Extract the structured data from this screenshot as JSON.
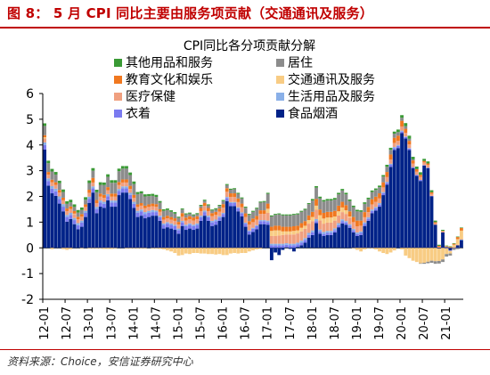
{
  "figure": {
    "title": "图 8： 5 月 CPI 同比主要由服务项贡献（交通通讯及服务）",
    "source": "资料来源：Choice，安信证券研究中心"
  },
  "chart_data": {
    "type": "bar",
    "stacked": true,
    "title": "CPI同比各分项贡献分解",
    "xlabel": "",
    "ylabel": "",
    "ylim": [
      -2,
      6
    ],
    "yticks": [
      -2,
      -1,
      0,
      1,
      2,
      3,
      4,
      5,
      6
    ],
    "xtick_labels": [
      "12-01",
      "12-07",
      "13-01",
      "13-07",
      "14-01",
      "14-07",
      "15-01",
      "15-07",
      "16-01",
      "16-07",
      "17-01",
      "17-07",
      "18-01",
      "18-07",
      "19-01",
      "19-07",
      "20-01",
      "20-07",
      "21-01"
    ],
    "legend_position": "top",
    "x": [
      "12-01",
      "12-02",
      "12-03",
      "12-04",
      "12-05",
      "12-06",
      "12-07",
      "12-08",
      "12-09",
      "12-10",
      "12-11",
      "12-12",
      "13-01",
      "13-02",
      "13-03",
      "13-04",
      "13-05",
      "13-06",
      "13-07",
      "13-08",
      "13-09",
      "13-10",
      "13-11",
      "13-12",
      "14-01",
      "14-02",
      "14-03",
      "14-04",
      "14-05",
      "14-06",
      "14-07",
      "14-08",
      "14-09",
      "14-10",
      "14-11",
      "14-12",
      "15-01",
      "15-02",
      "15-03",
      "15-04",
      "15-05",
      "15-06",
      "15-07",
      "15-08",
      "15-09",
      "15-10",
      "15-11",
      "15-12",
      "16-01",
      "16-02",
      "16-03",
      "16-04",
      "16-05",
      "16-06",
      "16-07",
      "16-08",
      "16-09",
      "16-10",
      "16-11",
      "16-12",
      "17-01",
      "17-02",
      "17-03",
      "17-04",
      "17-05",
      "17-06",
      "17-07",
      "17-08",
      "17-09",
      "17-10",
      "17-11",
      "17-12",
      "18-01",
      "18-02",
      "18-03",
      "18-04",
      "18-05",
      "18-06",
      "18-07",
      "18-08",
      "18-09",
      "18-10",
      "18-11",
      "18-12",
      "19-01",
      "19-02",
      "19-03",
      "19-04",
      "19-05",
      "19-06",
      "19-07",
      "19-08",
      "19-09",
      "19-10",
      "19-11",
      "19-12",
      "20-01",
      "20-02",
      "20-03",
      "20-04",
      "20-05",
      "20-06",
      "20-07",
      "20-08",
      "20-09",
      "20-10",
      "20-11",
      "20-12",
      "21-01",
      "21-02",
      "21-03",
      "21-04",
      "21-05"
    ],
    "series": [
      {
        "name": "食品烟酒",
        "color": "#002288",
        "values": [
          3.82,
          2.42,
          2.12,
          2.02,
          1.72,
          1.42,
          1.02,
          1.12,
          0.92,
          0.72,
          0.82,
          1.2,
          1.75,
          2.15,
          1.35,
          1.6,
          1.55,
          1.85,
          1.6,
          1.6,
          2.05,
          2.15,
          2.15,
          1.9,
          1.55,
          1.2,
          1.25,
          1.15,
          1.2,
          1.25,
          1.25,
          1.05,
          0.75,
          0.8,
          0.75,
          0.7,
          0.55,
          0.85,
          0.7,
          0.75,
          0.7,
          0.75,
          1.05,
          1.25,
          1.05,
          0.85,
          0.9,
          1.05,
          1.2,
          1.82,
          1.62,
          1.62,
          1.42,
          1.22,
          0.82,
          0.52,
          0.62,
          0.72,
          0.92,
          0.92,
          0.9,
          -0.48,
          -0.18,
          -0.28,
          -0.08,
          0.02,
          -0.04,
          -0.14,
          0.04,
          0.1,
          0.2,
          0.4,
          0.5,
          0.96,
          0.55,
          0.46,
          0.5,
          0.5,
          0.6,
          0.8,
          0.95,
          0.9,
          0.78,
          0.6,
          0.46,
          0.5,
          0.85,
          1.05,
          1.35,
          1.45,
          1.6,
          2.05,
          2.45,
          3.15,
          3.8,
          3.88,
          4.46,
          4.25,
          3.8,
          3.1,
          2.8,
          2.6,
          3.2,
          3.1,
          2.0,
          0.9,
          -0.03,
          0.6,
          0.03,
          -0.1,
          0.0,
          0.1,
          0.3
        ]
      },
      {
        "name": "衣着",
        "color": "#7b7bf0",
        "values": [
          0.18,
          0.18,
          0.18,
          0.18,
          0.18,
          0.18,
          0.18,
          0.16,
          0.16,
          0.16,
          0.16,
          0.16,
          0.16,
          0.16,
          0.16,
          0.16,
          0.16,
          0.16,
          0.16,
          0.16,
          0.16,
          0.16,
          0.16,
          0.16,
          0.16,
          0.16,
          0.16,
          0.16,
          0.16,
          0.14,
          0.14,
          0.14,
          0.14,
          0.14,
          0.14,
          0.14,
          0.14,
          0.14,
          0.14,
          0.14,
          0.14,
          0.14,
          0.14,
          0.14,
          0.14,
          0.14,
          0.14,
          0.12,
          0.12,
          0.12,
          0.12,
          0.12,
          0.12,
          0.12,
          0.12,
          0.12,
          0.12,
          0.12,
          0.12,
          0.12,
          0.1,
          0.1,
          0.1,
          0.1,
          0.1,
          0.1,
          0.1,
          0.1,
          0.1,
          0.1,
          0.1,
          0.1,
          0.1,
          0.08,
          0.08,
          0.08,
          0.08,
          0.08,
          0.08,
          0.08,
          0.08,
          0.08,
          0.08,
          0.08,
          0.08,
          0.08,
          0.08,
          0.08,
          0.08,
          0.08,
          0.08,
          0.08,
          0.08,
          0.08,
          0.08,
          0.08,
          0.06,
          0.06,
          0.06,
          0.04,
          0.04,
          0.04,
          0.02,
          0.02,
          0.02,
          0.0,
          0.0,
          0.0,
          -0.02,
          -0.02,
          -0.02,
          -0.01,
          0.0
        ]
      },
      {
        "name": "生活用品及服务",
        "color": "#8ab0e8",
        "values": [
          0.1,
          0.1,
          0.1,
          0.1,
          0.1,
          0.1,
          0.08,
          0.08,
          0.08,
          0.08,
          0.08,
          0.08,
          0.08,
          0.08,
          0.08,
          0.08,
          0.08,
          0.08,
          0.08,
          0.08,
          0.08,
          0.08,
          0.08,
          0.08,
          0.08,
          0.08,
          0.08,
          0.08,
          0.08,
          0.08,
          0.06,
          0.06,
          0.06,
          0.06,
          0.06,
          0.06,
          0.06,
          0.06,
          0.06,
          0.06,
          0.06,
          0.06,
          0.06,
          0.06,
          0.06,
          0.06,
          0.06,
          0.06,
          0.04,
          0.04,
          0.04,
          0.04,
          0.04,
          0.04,
          0.04,
          0.04,
          0.04,
          0.04,
          0.04,
          0.04,
          0.06,
          0.06,
          0.06,
          0.06,
          0.06,
          0.06,
          0.06,
          0.06,
          0.06,
          0.08,
          0.08,
          0.08,
          0.08,
          0.08,
          0.08,
          0.08,
          0.08,
          0.08,
          0.08,
          0.08,
          0.08,
          0.06,
          0.06,
          0.06,
          0.06,
          0.06,
          0.06,
          0.06,
          0.06,
          0.06,
          0.06,
          0.04,
          0.04,
          0.04,
          0.04,
          0.04,
          0.04,
          0.02,
          0.02,
          0.0,
          0.0,
          0.0,
          0.0,
          0.0,
          0.0,
          0.0,
          0.0,
          0.0,
          0.0,
          0.0,
          0.0,
          0.0,
          0.02
        ]
      },
      {
        "name": "医疗保健",
        "color": "#f0a080",
        "values": [
          0.15,
          0.15,
          0.15,
          0.15,
          0.15,
          0.15,
          0.15,
          0.15,
          0.15,
          0.15,
          0.15,
          0.15,
          0.15,
          0.15,
          0.15,
          0.15,
          0.15,
          0.15,
          0.15,
          0.15,
          0.15,
          0.15,
          0.15,
          0.15,
          0.15,
          0.15,
          0.15,
          0.15,
          0.15,
          0.15,
          0.15,
          0.15,
          0.15,
          0.15,
          0.15,
          0.15,
          0.16,
          0.16,
          0.16,
          0.16,
          0.16,
          0.16,
          0.18,
          0.18,
          0.18,
          0.18,
          0.18,
          0.18,
          0.2,
          0.2,
          0.2,
          0.2,
          0.2,
          0.2,
          0.22,
          0.22,
          0.22,
          0.22,
          0.24,
          0.24,
          0.3,
          0.3,
          0.3,
          0.32,
          0.34,
          0.34,
          0.36,
          0.36,
          0.36,
          0.36,
          0.36,
          0.36,
          0.36,
          0.36,
          0.36,
          0.32,
          0.32,
          0.32,
          0.3,
          0.3,
          0.28,
          0.28,
          0.26,
          0.26,
          0.24,
          0.22,
          0.2,
          0.2,
          0.2,
          0.2,
          0.18,
          0.18,
          0.18,
          0.16,
          0.16,
          0.16,
          0.16,
          0.14,
          0.14,
          0.14,
          0.12,
          0.12,
          0.1,
          0.1,
          0.08,
          0.06,
          0.04,
          0.04,
          0.02,
          0.02,
          0.02,
          0.02,
          0.02
        ]
      },
      {
        "name": "交通通讯及服务",
        "color": "#f8cc84",
        "values": [
          0.05,
          0.0,
          -0.05,
          0.0,
          0.0,
          -0.05,
          -0.08,
          -0.05,
          0.02,
          0.0,
          -0.02,
          0.0,
          -0.02,
          -0.02,
          -0.02,
          -0.02,
          -0.04,
          -0.04,
          -0.04,
          -0.02,
          0.0,
          0.0,
          -0.02,
          -0.02,
          -0.02,
          -0.02,
          -0.02,
          -0.02,
          0.0,
          -0.02,
          -0.02,
          -0.04,
          -0.06,
          -0.1,
          -0.14,
          -0.2,
          -0.3,
          -0.28,
          -0.22,
          -0.24,
          -0.2,
          -0.2,
          -0.22,
          -0.22,
          -0.24,
          -0.24,
          -0.26,
          -0.24,
          -0.28,
          -0.28,
          -0.22,
          -0.2,
          -0.22,
          -0.2,
          -0.2,
          -0.14,
          -0.1,
          -0.06,
          -0.04,
          0.0,
          0.16,
          0.2,
          0.22,
          0.2,
          0.14,
          0.12,
          0.12,
          0.14,
          0.12,
          0.14,
          0.12,
          0.14,
          0.16,
          0.16,
          0.2,
          0.2,
          0.2,
          0.2,
          0.16,
          0.16,
          0.18,
          0.14,
          0.04,
          -0.02,
          -0.08,
          -0.14,
          -0.06,
          -0.02,
          -0.02,
          -0.06,
          -0.14,
          -0.2,
          -0.24,
          -0.18,
          -0.1,
          0.0,
          -0.06,
          -0.3,
          -0.4,
          -0.5,
          -0.55,
          -0.6,
          -0.58,
          -0.54,
          -0.5,
          -0.52,
          -0.48,
          -0.45,
          -0.22,
          -0.1,
          0.1,
          0.22,
          0.33
        ]
      },
      {
        "name": "教育文化和娱乐",
        "color": "#f07820",
        "values": [
          0.08,
          0.1,
          0.1,
          0.1,
          0.1,
          0.1,
          0.1,
          0.1,
          0.1,
          0.1,
          0.1,
          0.1,
          0.12,
          0.18,
          0.12,
          0.12,
          0.12,
          0.12,
          0.12,
          0.12,
          0.12,
          0.12,
          0.12,
          0.12,
          0.12,
          0.1,
          0.1,
          0.1,
          0.1,
          0.1,
          0.1,
          0.1,
          0.1,
          0.1,
          0.1,
          0.1,
          0.1,
          0.14,
          0.12,
          0.12,
          0.12,
          0.12,
          0.12,
          0.12,
          0.12,
          0.12,
          0.12,
          0.12,
          0.14,
          0.14,
          0.14,
          0.14,
          0.14,
          0.14,
          0.14,
          0.14,
          0.14,
          0.14,
          0.14,
          0.14,
          0.2,
          0.16,
          0.18,
          0.18,
          0.18,
          0.18,
          0.18,
          0.18,
          0.18,
          0.18,
          0.18,
          0.18,
          0.2,
          0.26,
          0.22,
          0.22,
          0.22,
          0.22,
          0.22,
          0.22,
          0.22,
          0.2,
          0.2,
          0.2,
          0.22,
          0.2,
          0.2,
          0.2,
          0.2,
          0.2,
          0.2,
          0.2,
          0.2,
          0.2,
          0.2,
          0.2,
          0.22,
          0.16,
          0.14,
          0.12,
          0.1,
          0.08,
          0.06,
          0.06,
          0.06,
          0.04,
          0.04,
          0.02,
          0.02,
          0.02,
          0.04,
          0.08,
          0.1
        ]
      },
      {
        "name": "居住",
        "color": "#8c8c8c",
        "values": [
          0.36,
          0.34,
          0.32,
          0.3,
          0.26,
          0.22,
          0.18,
          0.16,
          0.16,
          0.16,
          0.16,
          0.18,
          0.26,
          0.28,
          0.3,
          0.34,
          0.38,
          0.4,
          0.42,
          0.42,
          0.42,
          0.42,
          0.42,
          0.42,
          0.42,
          0.4,
          0.38,
          0.36,
          0.32,
          0.3,
          0.28,
          0.26,
          0.24,
          0.22,
          0.2,
          0.18,
          0.16,
          0.14,
          0.12,
          0.1,
          0.08,
          0.08,
          0.08,
          0.08,
          0.1,
          0.1,
          0.1,
          0.1,
          0.12,
          0.12,
          0.14,
          0.16,
          0.18,
          0.2,
          0.22,
          0.24,
          0.26,
          0.28,
          0.3,
          0.32,
          0.38,
          0.4,
          0.42,
          0.44,
          0.44,
          0.44,
          0.44,
          0.44,
          0.44,
          0.44,
          0.44,
          0.44,
          0.44,
          0.44,
          0.44,
          0.44,
          0.44,
          0.44,
          0.44,
          0.44,
          0.44,
          0.42,
          0.4,
          0.38,
          0.36,
          0.34,
          0.32,
          0.3,
          0.28,
          0.26,
          0.24,
          0.22,
          0.2,
          0.18,
          0.16,
          0.14,
          0.12,
          0.1,
          0.08,
          0.04,
          0.0,
          -0.02,
          -0.04,
          -0.06,
          -0.08,
          -0.1,
          -0.1,
          -0.1,
          -0.1,
          -0.08,
          -0.06,
          -0.04,
          -0.02
        ]
      },
      {
        "name": "其他用品和服务",
        "color": "#3a9a35",
        "values": [
          0.1,
          0.1,
          0.1,
          0.1,
          0.1,
          0.1,
          0.1,
          0.1,
          0.1,
          0.1,
          0.1,
          0.1,
          0.1,
          0.1,
          0.1,
          0.1,
          0.1,
          0.1,
          0.1,
          0.1,
          0.1,
          0.1,
          0.1,
          0.1,
          0.1,
          0.08,
          0.08,
          0.08,
          0.08,
          0.08,
          0.08,
          0.06,
          0.06,
          0.06,
          0.06,
          0.06,
          0.04,
          0.04,
          0.04,
          0.04,
          0.04,
          0.04,
          0.04,
          0.04,
          0.04,
          0.04,
          0.04,
          0.04,
          0.04,
          0.04,
          0.04,
          0.04,
          0.04,
          0.04,
          0.04,
          0.04,
          0.04,
          0.04,
          0.04,
          0.04,
          0.04,
          0.04,
          0.04,
          0.04,
          0.04,
          0.04,
          0.04,
          0.04,
          0.04,
          0.04,
          0.04,
          0.04,
          0.06,
          0.06,
          0.06,
          0.06,
          0.06,
          0.06,
          0.06,
          0.06,
          0.06,
          0.06,
          0.06,
          0.06,
          0.06,
          0.06,
          0.06,
          0.06,
          0.06,
          0.06,
          0.06,
          0.06,
          0.08,
          0.08,
          0.08,
          0.1,
          0.1,
          0.12,
          0.12,
          0.1,
          0.1,
          0.1,
          0.08,
          0.08,
          0.08,
          0.06,
          0.04,
          0.04,
          0.02,
          0.02,
          0.02,
          0.02,
          0.02
        ]
      }
    ],
    "legend_order": [
      "其他用品和服务",
      "居住",
      "教育文化和娱乐",
      "交通通讯及服务",
      "医疗保健",
      "生活用品及服务",
      "衣着",
      "食品烟酒"
    ]
  }
}
